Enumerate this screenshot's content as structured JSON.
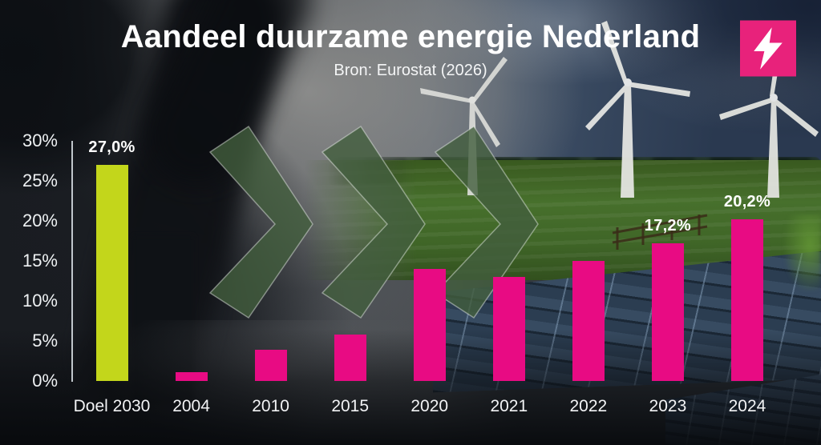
{
  "header": {
    "title": "Aandeel duurzame energie Nederland",
    "subtitle": "Bron: Eurostat (2026)"
  },
  "logo": {
    "icon": "lightning-bolt-icon",
    "background_color": "#e8227b",
    "icon_color": "#ffffff"
  },
  "colors": {
    "bar_pink": "#e80b83",
    "bar_target_lime": "#c3d61b",
    "axis_line": "#d4dae0",
    "text_white": "#ffffff",
    "chevron_green": "rgba(66,94,61,0.8)"
  },
  "background_scene": {
    "left": "dark-coal-plant-smoke-photo",
    "right": "wind-turbines-green-field-solar-panels-photo",
    "motif": "three-forward-chevrons"
  },
  "chart_data": {
    "type": "bar",
    "title": "Aandeel duurzame energie Nederland",
    "subtitle": "Bron: Eurostat (2026)",
    "categories": [
      "Doel 2030",
      "2004",
      "2010",
      "2015",
      "2020",
      "2021",
      "2022",
      "2023",
      "2024"
    ],
    "values": [
      27.0,
      1.1,
      3.9,
      5.8,
      14.0,
      13.0,
      15.0,
      17.2,
      20.2
    ],
    "data_labels": [
      "27,0%",
      "",
      "",
      "",
      "",
      "",
      "",
      "17,2%",
      "20,2%"
    ],
    "bar_colors": [
      "#c3d61b",
      "#e80b83",
      "#e80b83",
      "#e80b83",
      "#e80b83",
      "#e80b83",
      "#e80b83",
      "#e80b83",
      "#e80b83"
    ],
    "xlabel": "",
    "ylabel": "",
    "ylim": [
      0,
      30
    ],
    "y_tick_values": [
      0,
      5,
      10,
      15,
      20,
      25,
      30
    ],
    "y_tick_labels": [
      "0%",
      "5%",
      "10%",
      "15%",
      "20%",
      "25%",
      "30%"
    ],
    "grid": false,
    "legend": false
  }
}
